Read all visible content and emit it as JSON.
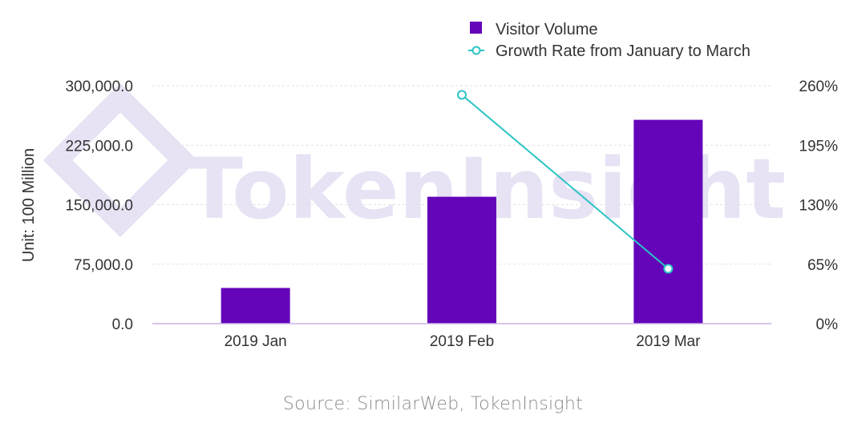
{
  "colors": {
    "bar": "#6405b9",
    "line": "#2bc4c4",
    "axis": "#c9b3e6",
    "grid": "#e2e2e2",
    "text": "#333333",
    "watermark": "#e7e2f4"
  },
  "watermark": {
    "text": "TokenInsight",
    "icon": "tokeninsight-logo"
  },
  "chart_data": {
    "type": "bar",
    "categories": [
      "2019 Jan",
      "2019 Feb",
      "2019 Mar"
    ],
    "series": [
      {
        "name": "Visitor Volume",
        "type": "bar",
        "axis": "left",
        "values": [
          45000,
          160000,
          257000
        ]
      },
      {
        "name": "Growth Rate from January to March",
        "type": "line",
        "axis": "right",
        "values": [
          null,
          250,
          60
        ]
      }
    ],
    "ylabel": "Unit: 100 Million",
    "ylim": [
      0,
      300000
    ],
    "yticks": [
      "0.0",
      "75,000.0",
      "150,000.0",
      "225,000.0",
      "300,000.0"
    ],
    "ytick_values": [
      0,
      75000,
      150000,
      225000,
      300000
    ],
    "y2lim": [
      0,
      260
    ],
    "y2ticks": [
      "0%",
      "65%",
      "130%",
      "195%",
      "260%"
    ],
    "y2tick_values": [
      0,
      65,
      130,
      195,
      260
    ],
    "grid": true,
    "legend": "top-right"
  },
  "source": "Source: SimilarWeb, TokenInsight"
}
